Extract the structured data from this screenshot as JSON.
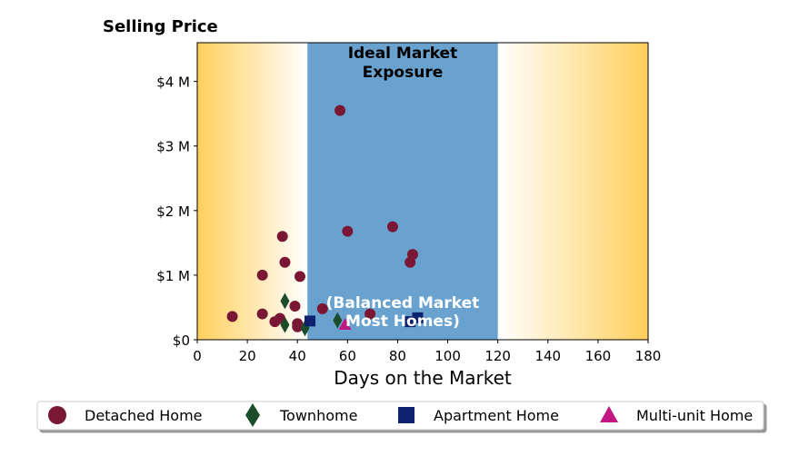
{
  "chart_data": {
    "type": "scatter",
    "title": "Selling Price",
    "xlabel": "Days on the Market",
    "ylabel": "",
    "xlim": [
      0,
      180
    ],
    "ylim": [
      0,
      4600000
    ],
    "x_ticks": [
      0,
      20,
      40,
      60,
      80,
      100,
      120,
      140,
      160,
      180
    ],
    "x_tick_labels": [
      "0",
      "20",
      "40",
      "60",
      "80",
      "100",
      "120",
      "140",
      "160",
      "180"
    ],
    "y_ticks": [
      0,
      1000000,
      2000000,
      3000000,
      4000000
    ],
    "y_tick_labels": [
      "$0",
      "$1 M",
      "$2 M",
      "$3 M",
      "$4 M"
    ],
    "grid": false,
    "legend_position": "bottom",
    "shaded_region": {
      "x_range": [
        44,
        120
      ],
      "color": "#6aa2cf",
      "label_top": [
        "Ideal Market",
        "Exposure"
      ],
      "label_bottom": [
        "(Balanced Market",
        "Most Homes)"
      ]
    },
    "gradient_color": "#ffcf5c",
    "series": [
      {
        "name": "Detached Home",
        "marker": "circle",
        "color": "#7a1734",
        "points": [
          [
            14,
            360000
          ],
          [
            26,
            1000000
          ],
          [
            26,
            400000
          ],
          [
            31,
            280000
          ],
          [
            33,
            330000
          ],
          [
            34,
            1600000
          ],
          [
            35,
            1200000
          ],
          [
            39,
            520000
          ],
          [
            40,
            250000
          ],
          [
            40,
            200000
          ],
          [
            41,
            980000
          ],
          [
            50,
            480000
          ],
          [
            57,
            3550000
          ],
          [
            60,
            1680000
          ],
          [
            69,
            400000
          ],
          [
            78,
            1750000
          ],
          [
            85,
            1200000
          ],
          [
            86,
            1320000
          ]
        ]
      },
      {
        "name": "Townhome",
        "marker": "diamond",
        "color": "#1c4d2a",
        "points": [
          [
            35,
            600000
          ],
          [
            35,
            230000
          ],
          [
            43,
            180000
          ],
          [
            56,
            300000
          ]
        ]
      },
      {
        "name": "Apartment Home",
        "marker": "square",
        "color": "#0f2270",
        "points": [
          [
            45,
            290000
          ],
          [
            85,
            280000
          ],
          [
            88,
            340000
          ]
        ]
      },
      {
        "name": "Multi-unit Home",
        "marker": "triangle",
        "color": "#c01880",
        "points": [
          [
            59,
            240000
          ]
        ]
      }
    ]
  }
}
